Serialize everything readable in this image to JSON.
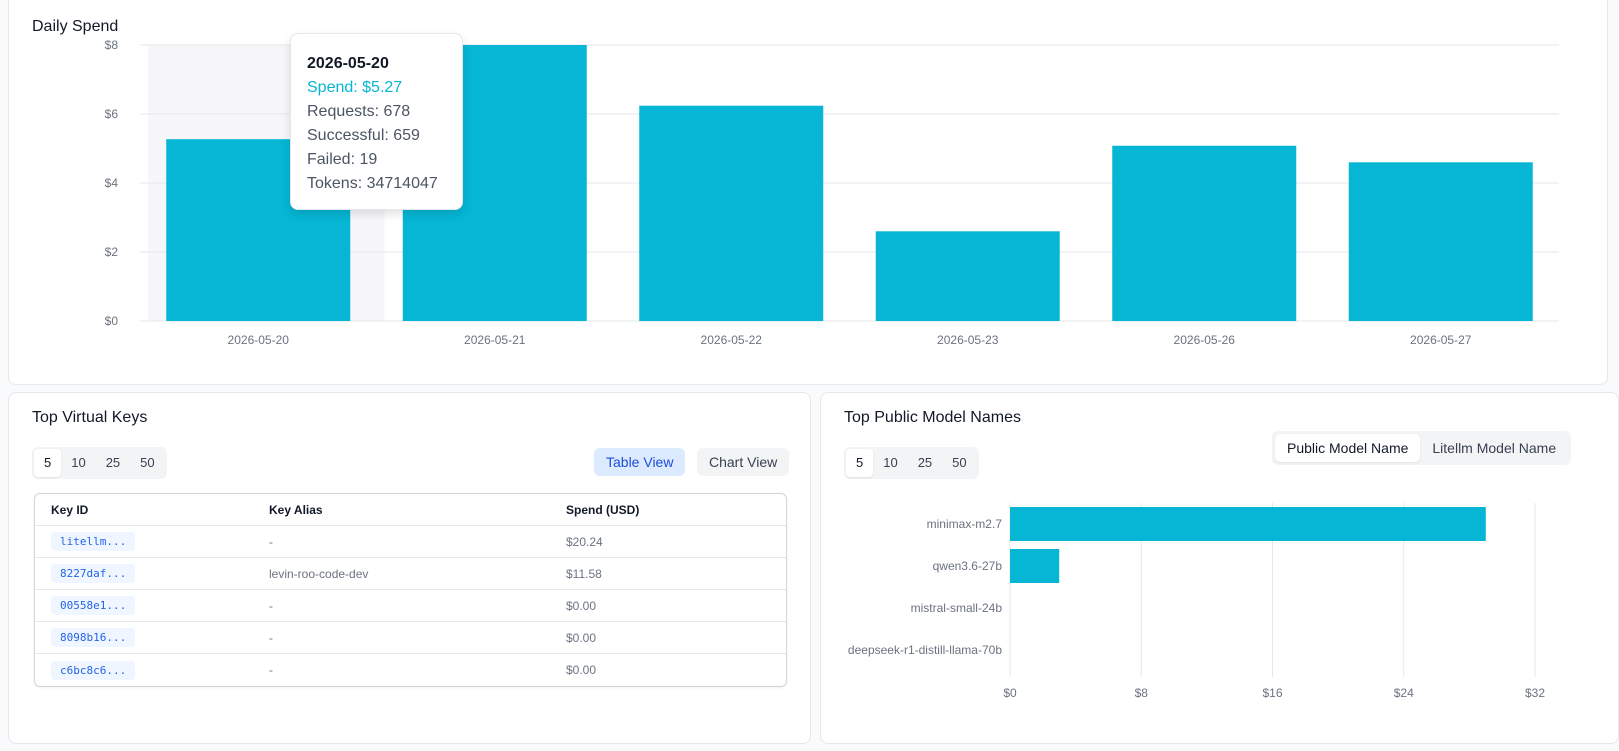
{
  "daily_spend": {
    "title": "Daily Spend",
    "y_ticks": [
      "$0",
      "$2",
      "$4",
      "$6",
      "$8"
    ],
    "tooltip": {
      "date": "2026-05-20",
      "spend": "Spend: $5.27",
      "requests": "Requests: 678",
      "successful": "Successful: 659",
      "failed": "Failed: 19",
      "tokens": "Tokens: 34714047"
    }
  },
  "chart_data": [
    {
      "type": "bar",
      "title": "Daily Spend",
      "categories": [
        "2026-05-20",
        "2026-05-21",
        "2026-05-22",
        "2026-05-23",
        "2026-05-26",
        "2026-05-27"
      ],
      "values": [
        5.27,
        8.0,
        6.24,
        2.6,
        5.08,
        4.6
      ],
      "ylim": [
        0,
        8
      ],
      "y_ticks": [
        0,
        2,
        4,
        6,
        8
      ],
      "color": "#06b6d4",
      "grid": true
    },
    {
      "type": "bar",
      "orientation": "horizontal",
      "categories": [
        "minimax-m2.7",
        "qwen3.6-27b",
        "mistral-small-24b",
        "deepseek-r1-distill-llama-70b"
      ],
      "values": [
        29.0,
        3.0,
        0,
        0
      ],
      "xlim": [
        0,
        32
      ],
      "x_ticks": [
        0,
        8,
        16,
        24,
        32
      ],
      "color": "#06b6d4",
      "grid": true
    }
  ],
  "top_keys": {
    "title": "Top Virtual Keys",
    "page_sizes": [
      "5",
      "10",
      "25",
      "50"
    ],
    "table_view_label": "Table View",
    "chart_view_label": "Chart View",
    "columns": [
      "Key ID",
      "Key Alias",
      "Spend (USD)"
    ],
    "rows": [
      {
        "id": "litellm...",
        "alias": "-",
        "spend": "$20.24"
      },
      {
        "id": "8227daf...",
        "alias": "levin-roo-code-dev",
        "spend": "$11.58"
      },
      {
        "id": "00558e1...",
        "alias": "-",
        "spend": "$0.00"
      },
      {
        "id": "8098b16...",
        "alias": "-",
        "spend": "$0.00"
      },
      {
        "id": "c6bc8c6...",
        "alias": "-",
        "spend": "$0.00"
      }
    ]
  },
  "top_models": {
    "title": "Top Public Model Names",
    "page_sizes": [
      "5",
      "10",
      "25",
      "50"
    ],
    "public_label": "Public Model Name",
    "litellm_label": "Litellm Model Name",
    "x_ticks": [
      "$0",
      "$8",
      "$16",
      "$24",
      "$32"
    ]
  }
}
